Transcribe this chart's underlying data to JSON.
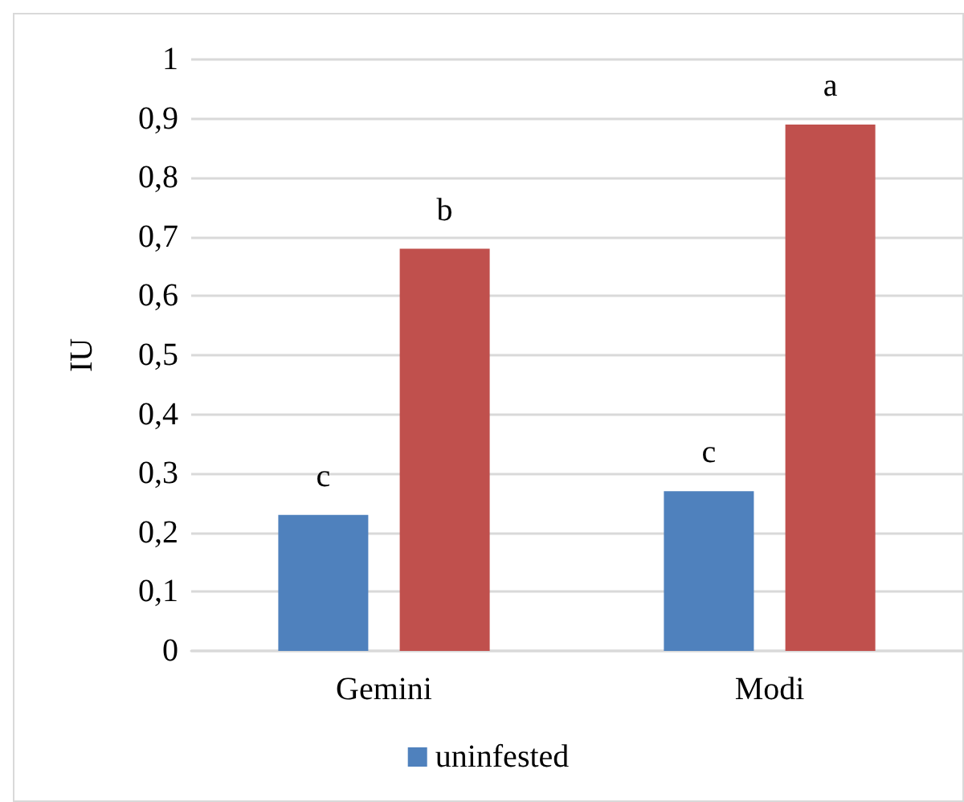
{
  "chart_data": {
    "type": "bar",
    "ylabel": "IU",
    "categories": [
      "Gemini",
      "Modi"
    ],
    "series": [
      {
        "name": "uninfested",
        "color": "#4f81bd",
        "values": [
          0.23,
          0.27
        ]
      },
      {
        "color": "#c0504d",
        "values": [
          0.68,
          0.89
        ]
      }
    ],
    "ylim": [
      0,
      1
    ],
    "yticks": [
      0,
      {
        "value": 0.1,
        "label": "0,1"
      },
      {
        "value": 0.2,
        "label": "0,2"
      },
      {
        "value": 0.3,
        "label": "0,3"
      },
      {
        "value": 0.4,
        "label": "0,4"
      },
      {
        "value": 0.5,
        "label": "0,5"
      },
      {
        "value": 0.6,
        "label": "0,6"
      },
      {
        "value": 0.7,
        "label": "0,7"
      },
      {
        "value": 0.8,
        "label": "0,8"
      },
      {
        "value": 0.9,
        "label": "0,9"
      },
      1
    ],
    "annotations": [
      "c",
      "b",
      "c",
      "a"
    ],
    "grid": "y",
    "legend": "bottom"
  }
}
